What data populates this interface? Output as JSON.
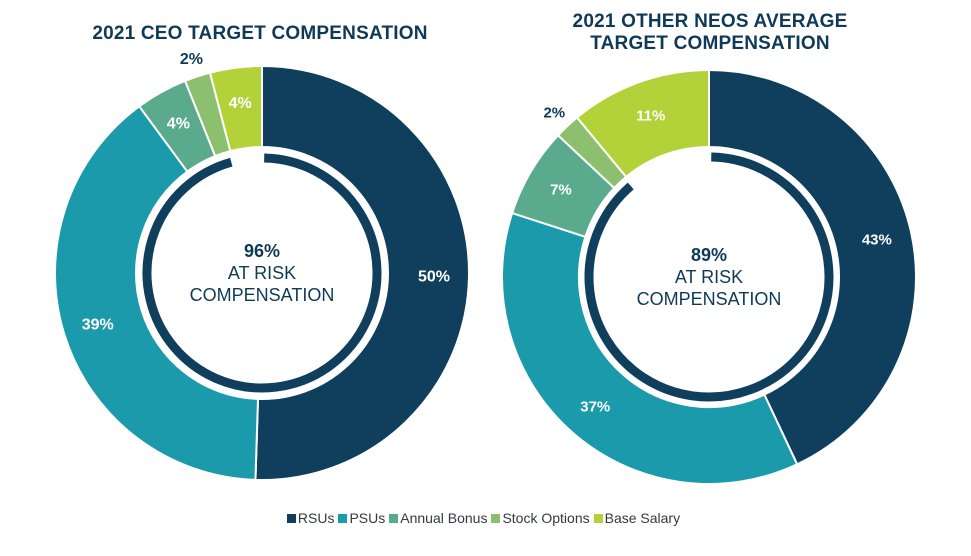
{
  "titles": {
    "ceo": "2021 CEO TARGET COMPENSATION",
    "neos_line1": "2021 OTHER NEOS AVERAGE",
    "neos_line2": "TARGET COMPENSATION"
  },
  "chart_data": [
    {
      "type": "pie",
      "title": "2021 CEO TARGET COMPENSATION",
      "center_text": {
        "value": "96%",
        "line1": "AT RISK",
        "line2": "COMPENSATION"
      },
      "categories": [
        "RSUs",
        "PSUs",
        "Annual Bonus",
        "Stock Options",
        "Base Salary"
      ],
      "values": [
        50,
        39,
        4,
        2,
        4
      ],
      "labels": [
        "50%",
        "39%",
        "4%",
        "2%",
        "4%"
      ],
      "at_risk_percent": 96
    },
    {
      "type": "pie",
      "title": "2021 OTHER NEOS AVERAGE TARGET COMPENSATION",
      "center_text": {
        "value": "89%",
        "line1": "AT RISK",
        "line2": "COMPENSATION"
      },
      "categories": [
        "RSUs",
        "PSUs",
        "Annual Bonus",
        "Stock Options",
        "Base Salary"
      ],
      "values": [
        43,
        37,
        7,
        2,
        11
      ],
      "labels": [
        "43%",
        "37%",
        "7%",
        "2%",
        "11%"
      ],
      "at_risk_percent": 89
    }
  ],
  "legend": {
    "position": "bottom",
    "items": [
      {
        "label": "RSUs",
        "color": "#0f3f5c"
      },
      {
        "label": "PSUs",
        "color": "#1b9aab"
      },
      {
        "label": "Annual Bonus",
        "color": "#5aab8e"
      },
      {
        "label": "Stock Options",
        "color": "#8dc06e"
      },
      {
        "label": "Base Salary",
        "color": "#b3d138"
      }
    ]
  },
  "colors": {
    "title": "#0f3a57",
    "ring": "#0f3f5c",
    "center_text": "#0f3a57",
    "dark_label": "#0f3a57",
    "light_label": "#ffffff"
  }
}
